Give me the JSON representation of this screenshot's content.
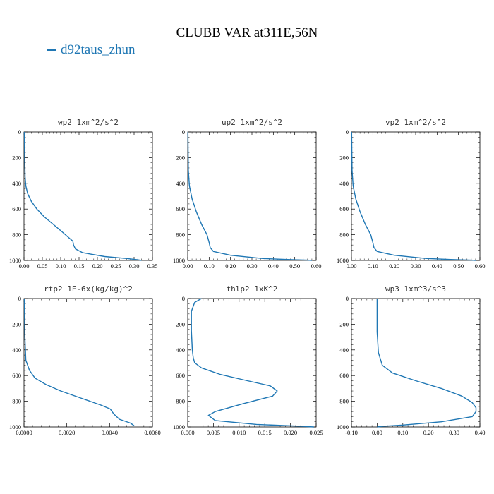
{
  "title": "CLUBB VAR at311E,56N",
  "legend": {
    "label": "d92taus_zhun",
    "color": "#1f77b4"
  },
  "chart_data": [
    {
      "type": "line",
      "title": "wp2  1xm^2/s^2",
      "xlim": [
        0,
        0.35
      ],
      "ylim": [
        1000,
        0
      ],
      "xticks": [
        "0.00",
        "0.05",
        "0.10",
        "0.15",
        "0.20",
        "0.25",
        "0.30",
        "0.35"
      ],
      "yticks": [
        "0",
        "200",
        "400",
        "600",
        "800",
        "1000"
      ],
      "series": [
        {
          "color": "#1f77b4",
          "x": [
            0.001,
            0.002,
            0.003,
            0.005,
            0.01,
            0.02,
            0.035,
            0.055,
            0.08,
            0.105,
            0.125,
            0.133,
            0.135,
            0.14,
            0.16,
            0.22,
            0.28,
            0.31,
            0.32
          ],
          "y": [
            0,
            200,
            350,
            420,
            480,
            540,
            600,
            660,
            720,
            780,
            830,
            850,
            880,
            910,
            940,
            970,
            985,
            995,
            1000
          ]
        }
      ]
    },
    {
      "type": "line",
      "title": "up2  1xm^2/s^2",
      "xlim": [
        0,
        0.6
      ],
      "ylim": [
        1000,
        0
      ],
      "xticks": [
        "0.00",
        "0.10",
        "0.20",
        "0.30",
        "0.40",
        "0.50",
        "0.60"
      ],
      "yticks": [
        "0",
        "200",
        "400",
        "600",
        "800",
        "1000"
      ],
      "series": [
        {
          "color": "#1f77b4",
          "x": [
            0.001,
            0.003,
            0.008,
            0.02,
            0.04,
            0.065,
            0.09,
            0.1,
            0.105,
            0.12,
            0.2,
            0.35,
            0.5,
            0.56,
            0.58
          ],
          "y": [
            0,
            300,
            420,
            520,
            620,
            720,
            800,
            860,
            900,
            930,
            960,
            985,
            995,
            998,
            1000
          ]
        }
      ]
    },
    {
      "type": "line",
      "title": "vp2  1xm^2/s^2",
      "xlim": [
        0,
        0.6
      ],
      "ylim": [
        1000,
        0
      ],
      "xticks": [
        "0.00",
        "0.10",
        "0.20",
        "0.30",
        "0.40",
        "0.50",
        "0.60"
      ],
      "yticks": [
        "0",
        "200",
        "400",
        "600",
        "800",
        "1000"
      ],
      "series": [
        {
          "color": "#1f77b4",
          "x": [
            0.001,
            0.003,
            0.008,
            0.02,
            0.04,
            0.065,
            0.09,
            0.1,
            0.105,
            0.12,
            0.2,
            0.35,
            0.5,
            0.56,
            0.58
          ],
          "y": [
            0,
            300,
            420,
            520,
            620,
            720,
            800,
            860,
            900,
            930,
            960,
            985,
            995,
            998,
            1000
          ]
        }
      ]
    },
    {
      "type": "line",
      "title": "rtp2  1E-6x(kg/kg)^2",
      "xlim": [
        0,
        0.007
      ],
      "ylim": [
        1000,
        0
      ],
      "xticks": [
        "0.0000",
        "0.0020",
        "0.0040",
        "0.0060"
      ],
      "yticks": [
        "0",
        "200",
        "400",
        "600",
        "800",
        "1000"
      ],
      "series": [
        {
          "color": "#1f77b4",
          "x": [
            2e-05,
            5e-05,
            0.0001,
            0.0003,
            0.0006,
            0.0012,
            0.002,
            0.0032,
            0.0042,
            0.0047,
            0.0049,
            0.0052,
            0.0058,
            0.006
          ],
          "y": [
            0,
            300,
            480,
            560,
            620,
            670,
            720,
            780,
            830,
            860,
            900,
            940,
            970,
            990
          ]
        }
      ]
    },
    {
      "type": "line",
      "title": "thlp2  1xK^2",
      "xlim": [
        0,
        0.028
      ],
      "ylim": [
        1000,
        0
      ],
      "xticks": [
        "0.000",
        "0.005",
        "0.010",
        "0.015",
        "0.020",
        "0.025"
      ],
      "yticks": [
        "0",
        "200",
        "400",
        "600",
        "800",
        "1000"
      ],
      "series": [
        {
          "color": "#1f77b4",
          "x": [
            0.003,
            0.0015,
            0.0008,
            0.0008,
            0.001,
            0.0012,
            0.0015,
            0.003,
            0.007,
            0.013,
            0.018,
            0.0195,
            0.0185,
            0.012,
            0.006,
            0.0045,
            0.006,
            0.015,
            0.025,
            0.0275
          ],
          "y": [
            0,
            30,
            100,
            250,
            400,
            460,
            500,
            540,
            590,
            640,
            680,
            720,
            760,
            820,
            880,
            910,
            950,
            980,
            995,
            1000
          ]
        }
      ]
    },
    {
      "type": "line",
      "title": "wp3  1xm^3/s^3",
      "xlim": [
        -0.1,
        0.4
      ],
      "ylim": [
        1000,
        0
      ],
      "xticks": [
        "-0.10",
        "0.00",
        "0.10",
        "0.20",
        "0.30",
        "0.40"
      ],
      "yticks": [
        "0",
        "200",
        "400",
        "600",
        "800",
        "1000"
      ],
      "series": [
        {
          "color": "#1f77b4",
          "x": [
            0.0,
            0.0,
            0.0,
            0.005,
            0.02,
            0.06,
            0.15,
            0.25,
            0.33,
            0.37,
            0.385,
            0.385,
            0.37,
            0.25,
            0.1,
            0.02,
            0.0
          ],
          "y": [
            0,
            150,
            260,
            420,
            520,
            580,
            640,
            700,
            760,
            810,
            850,
            880,
            920,
            960,
            985,
            995,
            1000
          ]
        }
      ]
    }
  ]
}
